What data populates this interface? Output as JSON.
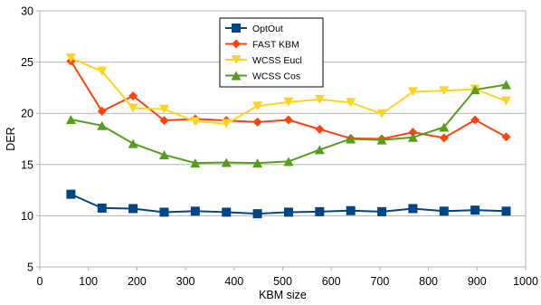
{
  "chart_data": {
    "type": "line",
    "title": "",
    "xlabel": "KBM size",
    "ylabel": "DER",
    "xlim": [
      0,
      1000
    ],
    "ylim": [
      5,
      30
    ],
    "xticks": [
      0,
      100,
      200,
      300,
      400,
      500,
      600,
      700,
      800,
      900,
      1000
    ],
    "yticks": [
      5,
      10,
      15,
      20,
      25,
      30
    ],
    "grid": "horizontal",
    "legend_position": "top-center",
    "x": [
      64,
      128,
      192,
      256,
      320,
      384,
      448,
      512,
      576,
      640,
      704,
      768,
      832,
      896,
      960
    ],
    "series": [
      {
        "name": "OptOut",
        "color": "#004586",
        "marker": "square",
        "values": [
          12.1,
          10.75,
          10.7,
          10.35,
          10.45,
          10.35,
          10.2,
          10.35,
          10.4,
          10.5,
          10.4,
          10.7,
          10.45,
          10.55,
          10.45
        ]
      },
      {
        "name": "FAST KBM",
        "color": "#ff420e",
        "marker": "diamond",
        "values": [
          25.1,
          20.2,
          21.7,
          19.3,
          19.45,
          19.3,
          19.15,
          19.35,
          18.45,
          17.55,
          17.5,
          18.15,
          17.6,
          19.35,
          17.7
        ]
      },
      {
        "name": "WCSS Eucl",
        "color": "#ffd320",
        "marker": "triangle-down",
        "values": [
          25.4,
          24.1,
          20.5,
          20.4,
          19.2,
          19.0,
          20.7,
          21.1,
          21.35,
          21.05,
          19.95,
          22.1,
          22.2,
          22.35,
          21.2
        ]
      },
      {
        "name": "WCSS Cos",
        "color": "#579d1c",
        "marker": "triangle-up",
        "values": [
          19.4,
          18.8,
          17.05,
          15.95,
          15.15,
          15.2,
          15.15,
          15.3,
          16.45,
          17.5,
          17.4,
          17.65,
          18.65,
          22.3,
          22.8
        ]
      }
    ]
  }
}
